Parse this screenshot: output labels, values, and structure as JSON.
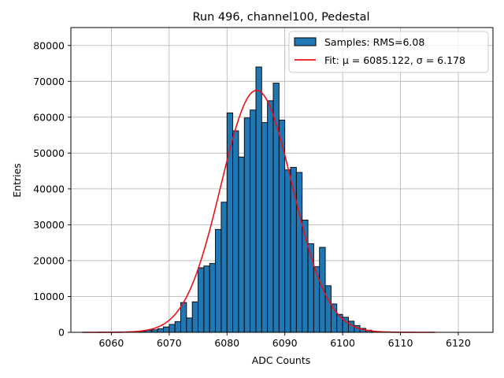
{
  "chart_data": {
    "type": "bar",
    "title": "Run 496, channel100, Pedestal",
    "xlabel": "ADC Counts",
    "ylabel": "Entries",
    "xlim": [
      6053,
      6126
    ],
    "ylim": [
      0,
      85000
    ],
    "x_ticks": [
      6060,
      6070,
      6080,
      6090,
      6100,
      6110,
      6120
    ],
    "y_ticks": [
      0,
      10000,
      20000,
      30000,
      40000,
      50000,
      60000,
      70000,
      80000
    ],
    "grid": true,
    "legend_position": "top-right",
    "bin_width": 1,
    "bin_left_edges": [
      6064,
      6065,
      6066,
      6067,
      6068,
      6069,
      6070,
      6071,
      6072,
      6073,
      6074,
      6075,
      6076,
      6077,
      6078,
      6079,
      6080,
      6081,
      6082,
      6083,
      6084,
      6085,
      6086,
      6087,
      6088,
      6089,
      6090,
      6091,
      6092,
      6093,
      6094,
      6095,
      6096,
      6097,
      6098,
      6099,
      6100,
      6101,
      6102,
      6103,
      6104,
      6105,
      6106
    ],
    "counts": [
      200,
      300,
      600,
      700,
      1000,
      1500,
      2200,
      3000,
      8300,
      4000,
      8500,
      18000,
      18500,
      19200,
      28700,
      36300,
      61200,
      56200,
      48900,
      59800,
      62000,
      74000,
      58500,
      64600,
      69500,
      59200,
      45300,
      46000,
      44600,
      31300,
      24700,
      18300,
      23700,
      13000,
      7900,
      5000,
      4200,
      3100,
      1900,
      1100,
      600,
      250,
      100
    ],
    "series": [
      {
        "name": "Samples: RMS=6.08",
        "kind": "histogram",
        "color": "#1f77b4",
        "edgecolor": "#000000"
      },
      {
        "name": "Fit: μ = 6085.122, σ = 6.178",
        "kind": "gaussian",
        "color": "#e8111b",
        "mu": 6085.122,
        "sigma": 6.178,
        "amplitude": 67500,
        "x_range": [
          6055,
          6116
        ]
      }
    ]
  }
}
